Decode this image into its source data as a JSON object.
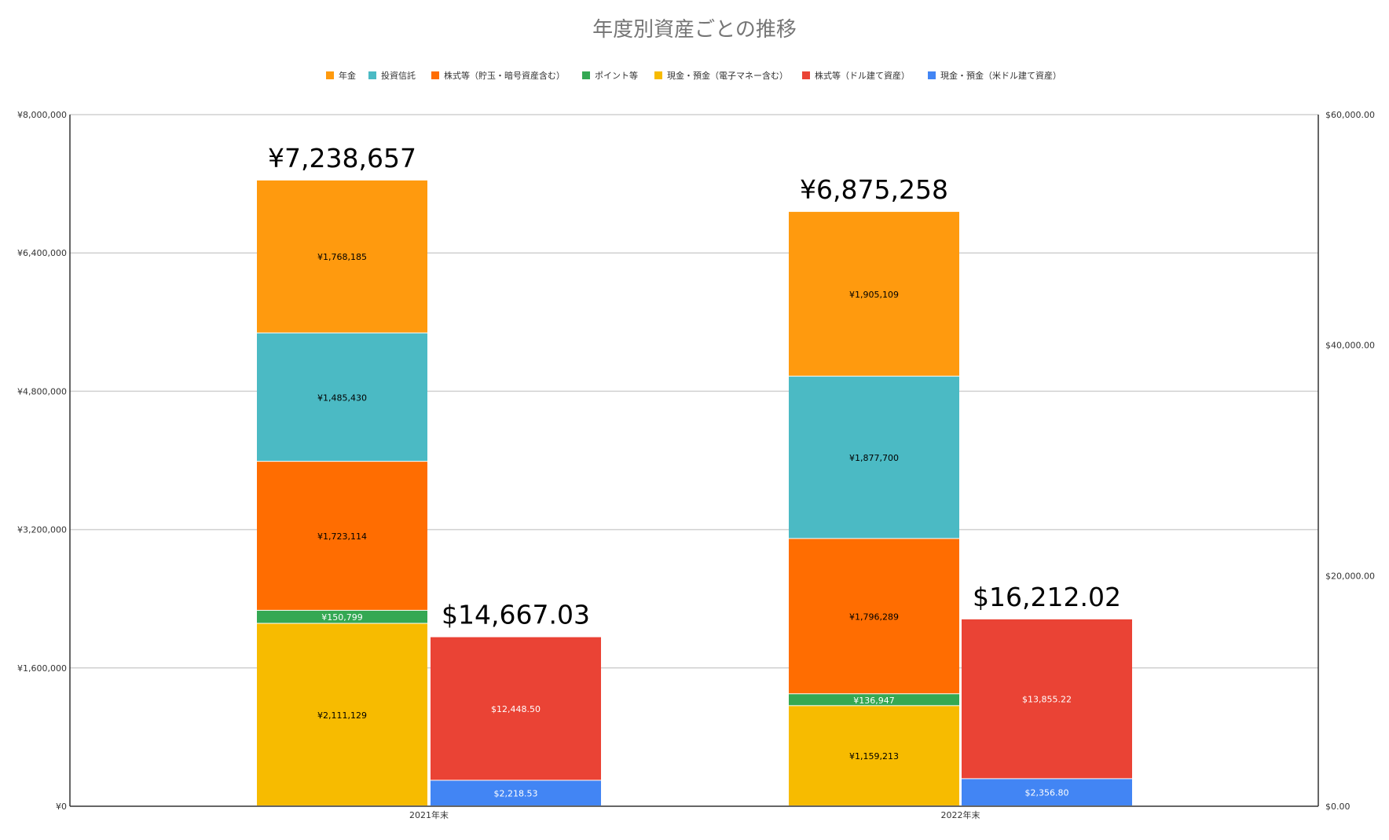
{
  "chart_data": {
    "type": "bar",
    "title": "年度別資産ごとの推移",
    "stacked": true,
    "categories": [
      "2021年末",
      "2022年末"
    ],
    "legend": {
      "position": "top",
      "entries": [
        {
          "name": "年金",
          "color": "#ff9a0e"
        },
        {
          "name": "投資信託",
          "color": "#4bbac4"
        },
        {
          "name": "株式等（貯玉・暗号資産含む）",
          "color": "#ff6d01"
        },
        {
          "name": "ポイント等",
          "color": "#34a853"
        },
        {
          "name": "現金・預金（電子マネー含む）",
          "color": "#f7bb00"
        },
        {
          "name": "株式等（ドル建て資産）",
          "color": "#ea4335"
        },
        {
          "name": "現金・預金（米ドル建て資産）",
          "color": "#4285f4"
        }
      ]
    },
    "left_axis": {
      "ylim": [
        0,
        8000000
      ],
      "ticks": [
        0,
        1600000,
        3200000,
        4800000,
        6400000,
        8000000
      ],
      "tick_labels": [
        "¥0",
        "¥1,600,000",
        "¥3,200,000",
        "¥4,800,000",
        "¥6,400,000",
        "¥8,000,000"
      ]
    },
    "right_axis": {
      "ylim": [
        0,
        60000
      ],
      "ticks": [
        0,
        20000,
        40000,
        60000
      ],
      "tick_labels": [
        "$0.00",
        "$20,000.00",
        "$40,000.00",
        "$60,000.00"
      ]
    },
    "yen_series": [
      {
        "name": "現金・預金（電子マネー含む）",
        "color": "#f7bb00",
        "values": [
          2111129,
          1159213
        ],
        "labels": [
          "¥2,111,129",
          "¥1,159,213"
        ],
        "label_color": "#000000"
      },
      {
        "name": "ポイント等",
        "color": "#34a853",
        "values": [
          150799,
          136947
        ],
        "labels": [
          "¥150,799",
          "¥136,947"
        ],
        "label_color": "#ffffff"
      },
      {
        "name": "株式等（貯玉・暗号資産含む）",
        "color": "#ff6d01",
        "values": [
          1723114,
          1796289
        ],
        "labels": [
          "¥1,723,114",
          "¥1,796,289"
        ],
        "label_color": "#000000"
      },
      {
        "name": "投資信託",
        "color": "#4bbac4",
        "values": [
          1485430,
          1877700
        ],
        "labels": [
          "¥1,485,430",
          "¥1,877,700"
        ],
        "label_color": "#000000"
      },
      {
        "name": "年金",
        "color": "#ff9a0e",
        "values": [
          1768185,
          1905109
        ],
        "labels": [
          "¥1,768,185",
          "¥1,905,109"
        ],
        "label_color": "#000000"
      }
    ],
    "yen_totals": [
      7238657,
      6875258
    ],
    "yen_total_labels": [
      "¥7,238,657",
      "¥6,875,258"
    ],
    "usd_series": [
      {
        "name": "現金・預金（米ドル建て資産）",
        "color": "#4285f4",
        "values": [
          2218.53,
          2356.8
        ],
        "labels": [
          "$2,218.53",
          "$2,356.80"
        ],
        "label_color": "#ffffff"
      },
      {
        "name": "株式等（ドル建て資産）",
        "color": "#ea4335",
        "values": [
          12448.5,
          13855.22
        ],
        "labels": [
          "$12,448.50",
          "$13,855.22"
        ],
        "label_color": "#ffffff"
      }
    ],
    "usd_totals": [
      14667.03,
      16212.02
    ],
    "usd_total_labels": [
      "$14,667.03",
      "$16,212.02"
    ],
    "grid": true
  }
}
